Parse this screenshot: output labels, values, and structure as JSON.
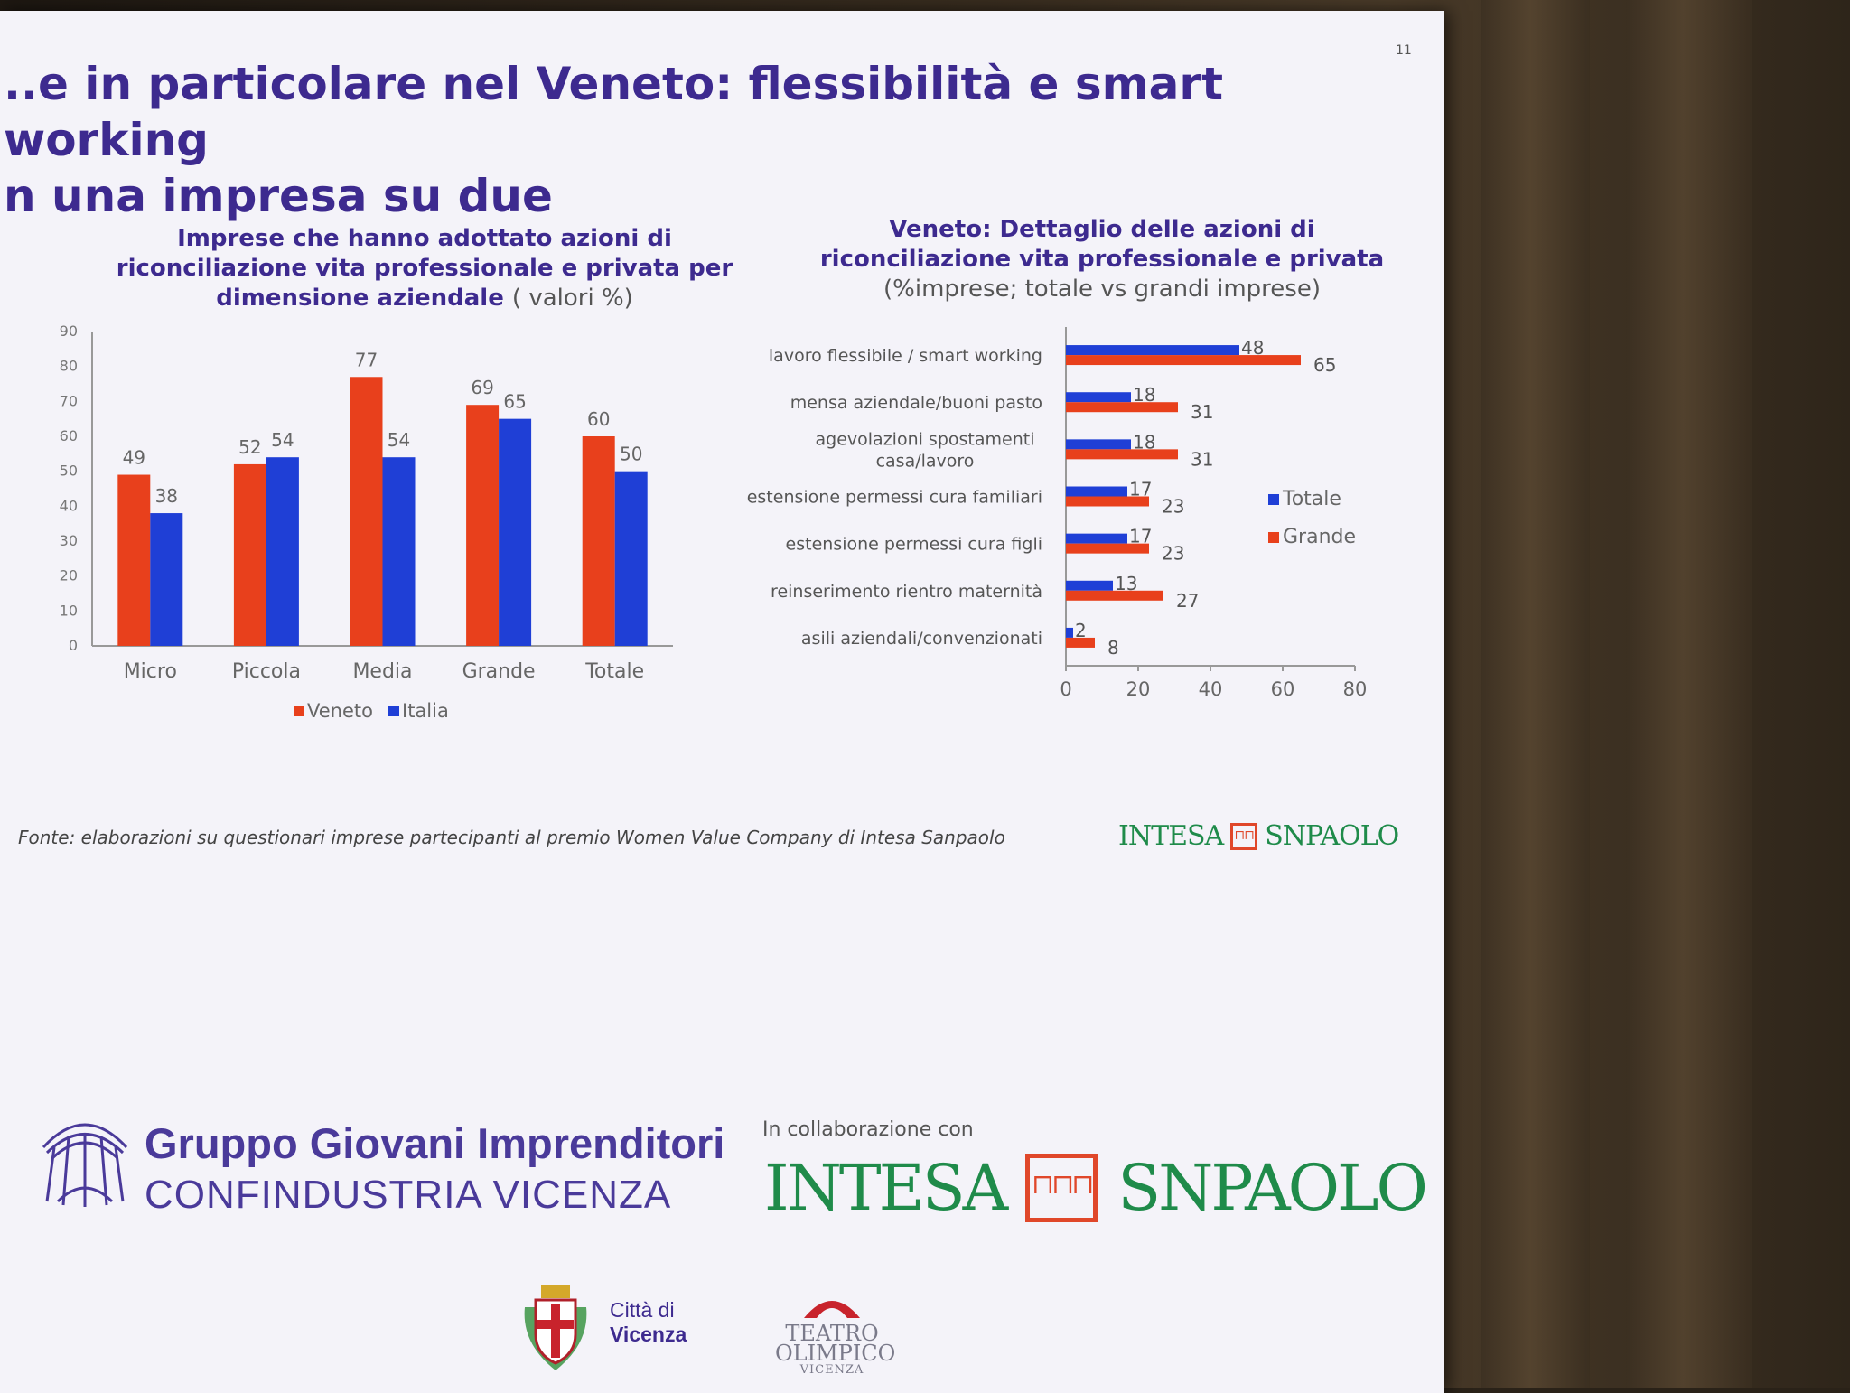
{
  "page_number": "11",
  "slide": {
    "title_line1": "..e in particolare nel Veneto: flessibilità e smart working",
    "title_line2": "n una impresa su due"
  },
  "colors": {
    "veneto": "#e8401c",
    "italia": "#1f3fd6",
    "title": "#3d2a8f",
    "intesa_green": "#1f8b4a",
    "intesa_red": "#e0472a"
  },
  "left_chart_header": {
    "title_line1": "Imprese che hanno adottato azioni di",
    "title_line2": "riconciliazione vita professionale e privata  per",
    "title_line3": "dimensione aziendale",
    "title_suffix": "( valori %)"
  },
  "right_chart_header": {
    "title_line1": "Veneto: Dettaglio delle azioni di",
    "title_line2": "riconciliazione vita professionale e privata",
    "subtitle": "(%imprese; totale vs grandi imprese)"
  },
  "chart_data": [
    {
      "type": "bar",
      "title": "Imprese che hanno adottato azioni di riconciliazione vita professionale e privata  per dimensione aziendale ( valori %)",
      "categories": [
        "Micro",
        "Piccola",
        "Media",
        "Grande",
        "Totale"
      ],
      "series": [
        {
          "name": "Veneto",
          "values": [
            49,
            52,
            77,
            69,
            60
          ],
          "color": "#e8401c"
        },
        {
          "name": "Italia",
          "values": [
            38,
            54,
            54,
            65,
            50
          ],
          "color": "#1f3fd6"
        }
      ],
      "ylim": [
        0,
        90
      ],
      "yticks": [
        "0",
        "10",
        "20",
        "30",
        "40",
        "50",
        "60",
        "70",
        "80",
        "90"
      ],
      "legend": "bottom",
      "grid": false
    },
    {
      "type": "bar",
      "orientation": "horizontal",
      "title": "Veneto: Dettaglio delle azioni di riconciliazione vita professionale e privata",
      "subtitle": "(%imprese; totale vs grandi imprese)",
      "categories": [
        "lavoro flessibile / smart working",
        "mensa aziendale/buoni pasto",
        "agevolazioni  spostamenti casa/lavoro",
        "estensione permessi cura familiari",
        "estensione permessi cura figli",
        "reinserimento rientro maternità",
        "asili aziendali/convenzionati"
      ],
      "category_lines": [
        [
          "lavoro flessibile / smart working"
        ],
        [
          "mensa aziendale/buoni pasto"
        ],
        [
          "agevolazioni  spostamenti",
          "casa/lavoro"
        ],
        [
          "estensione permessi cura familiari"
        ],
        [
          "estensione permessi cura figli"
        ],
        [
          "reinserimento rientro maternità"
        ],
        [
          "asili aziendali/convenzionati"
        ]
      ],
      "series": [
        {
          "name": "Totale",
          "values": [
            48,
            18,
            18,
            17,
            17,
            13,
            2
          ],
          "color": "#1f3fd6"
        },
        {
          "name": "Grande",
          "values": [
            65,
            31,
            31,
            23,
            23,
            27,
            8
          ],
          "color": "#e8401c"
        }
      ],
      "xlim": [
        0,
        80
      ],
      "xticks": [
        "0",
        "20",
        "40",
        "60",
        "80"
      ],
      "legend": "right",
      "grid": false
    }
  ],
  "footer": {
    "source": "Fonte: elaborazioni su questionari imprese partecipanti al premio Women Value Company di Intesa Sanpaolo",
    "intesa_small_left": "INTESA",
    "intesa_small_right": "SNPAOLO",
    "ggi_line1": "Gruppo Giovani Imprenditori",
    "ggi_line2": "CONFINDUSTRIA VICENZA",
    "collaboration": "In collaborazione con",
    "intesa_left": "INTESA",
    "intesa_right": "SNPAOLO",
    "vicenza_line1": "Città di",
    "vicenza_line2": "Vicenza",
    "teatro_line1": "TEATRO",
    "teatro_line2": "OLIMPICO",
    "teatro_line3": "VICENZA"
  }
}
